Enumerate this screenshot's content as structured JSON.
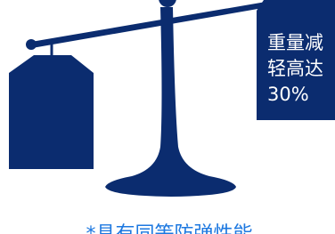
{
  "callout": {
    "lines": [
      "重量减",
      "轻高达",
      "30%"
    ]
  },
  "footnote": "*具有同等防弹性能"
}
